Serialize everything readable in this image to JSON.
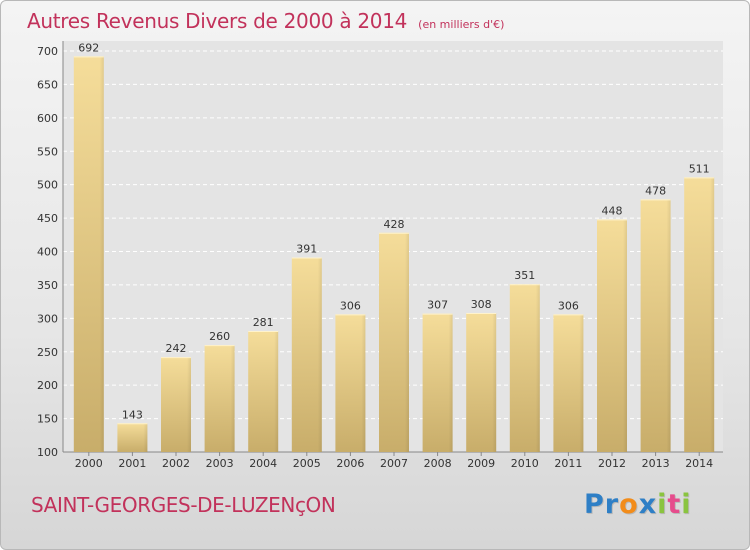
{
  "chart_data": {
    "type": "bar",
    "title": "Autres Revenus Divers de 2000 à 2014",
    "subtitle": "(en milliers d'€)",
    "categories": [
      "2000",
      "2001",
      "2002",
      "2003",
      "2004",
      "2005",
      "2006",
      "2007",
      "2008",
      "2009",
      "2010",
      "2011",
      "2012",
      "2013",
      "2014"
    ],
    "values": [
      692,
      143,
      242,
      260,
      281,
      391,
      306,
      428,
      307,
      308,
      351,
      306,
      448,
      478,
      511
    ],
    "xlabel": "",
    "ylabel": "",
    "ylim": [
      100,
      700
    ],
    "yticks": [
      100,
      150,
      200,
      250,
      300,
      350,
      400,
      450,
      500,
      550,
      600,
      650,
      700
    ],
    "grid": true,
    "legend": "none",
    "colors": {
      "bar_top": "#f5dd9a",
      "bar_bottom": "#c8ad6a",
      "title": "#c2325b"
    }
  },
  "footer": {
    "commune": "SAINT-GEORGES-DE-LUZENçON",
    "logo_letters": [
      {
        "ch": "P",
        "color": "#2e7fc6"
      },
      {
        "ch": "r",
        "color": "#2e7fc6"
      },
      {
        "ch": "o",
        "color": "#f28c1a"
      },
      {
        "ch": "x",
        "color": "#2e7fc6"
      },
      {
        "ch": "i",
        "color": "#8ac43f"
      },
      {
        "ch": "t",
        "color": "#e64c8c"
      },
      {
        "ch": "i",
        "color": "#8ac43f"
      }
    ]
  }
}
